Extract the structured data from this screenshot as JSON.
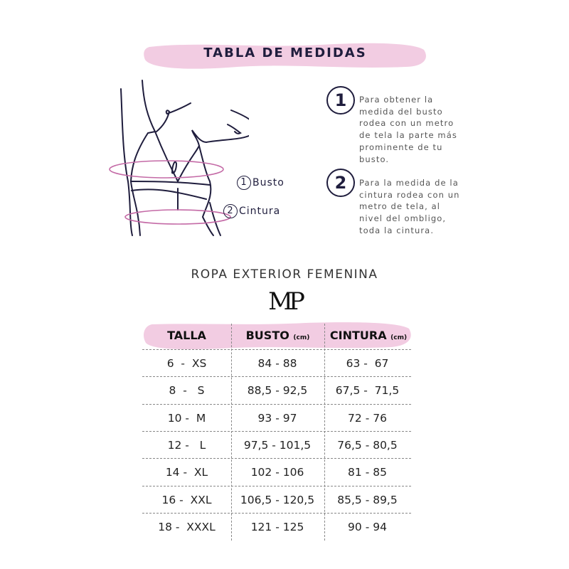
{
  "title": "TABLA DE MEDIDAS",
  "figure_labels": [
    {
      "number": "1",
      "label": "Busto"
    },
    {
      "number": "2",
      "label": "Cintura"
    }
  ],
  "instructions": [
    {
      "number": "1",
      "text": "Para obtener la medida del busto rodea con un metro de tela la parte más prominente de tu busto."
    },
    {
      "number": "2",
      "text": "Para la medida de la cintura rodea con un metro de tela, al nivel del ombligo, toda la cintura."
    }
  ],
  "subtitle": "ROPA EXTERIOR FEMENINA",
  "logo": "MP",
  "table": {
    "headers": [
      {
        "label": "TALLA",
        "unit": ""
      },
      {
        "label": "BUSTO",
        "unit": "(cm)"
      },
      {
        "label": "CINTURA",
        "unit": "(cm)"
      }
    ],
    "rows": [
      [
        "6  -  XS",
        "84 - 88",
        "63 -  67"
      ],
      [
        "8  -   S",
        "88,5 - 92,5",
        "67,5 -  71,5"
      ],
      [
        "10 -  M",
        "93 - 97",
        "72 - 76"
      ],
      [
        "12 -   L",
        "97,5 - 101,5",
        "76,5 - 80,5"
      ],
      [
        "14 -  XL",
        "102 - 106",
        "81 - 85"
      ],
      [
        "16 -  XXL",
        "106,5 - 120,5",
        "85,5 - 89,5"
      ],
      [
        "18 -  XXXL",
        "121 - 125",
        "90 - 94"
      ]
    ]
  },
  "colors": {
    "pink": "#f2cce2",
    "ink": "#1f1d3d",
    "ring": "#c46aa6"
  }
}
